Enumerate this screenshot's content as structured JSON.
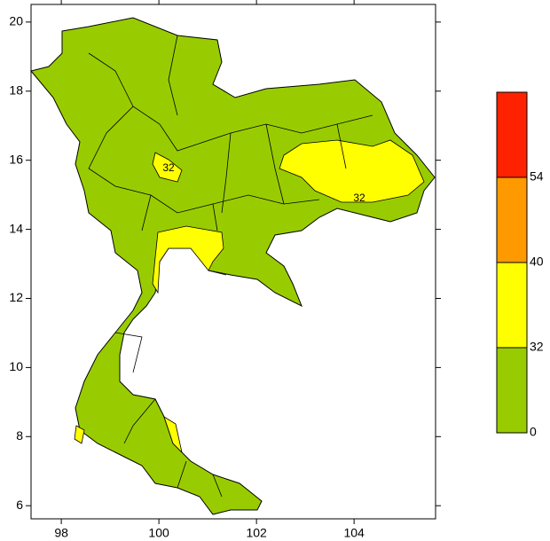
{
  "map": {
    "xlim": [
      97.38,
      105.67
    ],
    "ylim": [
      5.62,
      20.51
    ],
    "xticks": [
      98,
      100,
      102,
      104
    ],
    "yticks": [
      6,
      8,
      10,
      12,
      14,
      16,
      18,
      20
    ],
    "legend": {
      "levels": [
        0,
        32,
        40,
        54
      ],
      "colors": [
        "#99cc00",
        "#ffff00",
        "#ff9900",
        "#ff2200"
      ]
    },
    "contour_labels": [
      32,
      32
    ]
  }
}
